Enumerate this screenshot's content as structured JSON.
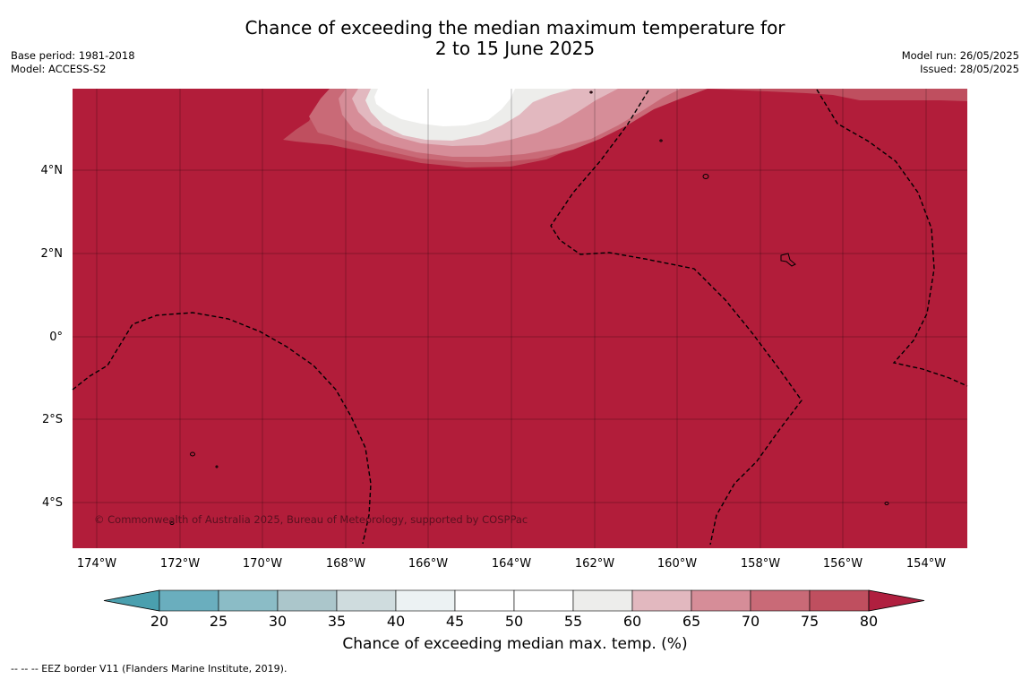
{
  "title": {
    "line1": "Chance of exceeding the median maximum temperature for",
    "line2": "2 to 15 June 2025"
  },
  "meta": {
    "base_period": "Base period: 1981-2018",
    "model": "Model: ACCESS-S2",
    "model_run": "Model run: 26/05/2025",
    "issued": "Issued: 28/05/2025"
  },
  "map": {
    "background_color": "#b21d3a",
    "copyright": "© Commonwealth of Australia 2025, Bureau of Meteorology, supported by COSPPac",
    "lat_labels": [
      "4°N",
      "2°N",
      "0°",
      "2°S",
      "4°S"
    ],
    "lon_labels": [
      "174°W",
      "172°W",
      "170°W",
      "168°W",
      "166°W",
      "164°W",
      "162°W",
      "160°W",
      "158°W",
      "156°W",
      "154°W"
    ]
  },
  "colorbar": {
    "ticks": [
      "20",
      "25",
      "30",
      "35",
      "40",
      "45",
      "50",
      "55",
      "60",
      "65",
      "70",
      "75",
      "80"
    ],
    "colors": [
      "#4a9fae",
      "#6aaebe",
      "#8bbcc6",
      "#abc6cb",
      "#cfdcde",
      "#ecf2f3",
      "#ffffff",
      "#ffffff",
      "#ededeb",
      "#e2b8bf",
      "#d68d98",
      "#c96a77",
      "#bf4f5f",
      "#b01f3f"
    ],
    "label": "Chance of exceeding median max. temp. (%)"
  },
  "footnote": "-- -- -- EEZ border V11 (Flanders Marine Institute, 2019)."
}
